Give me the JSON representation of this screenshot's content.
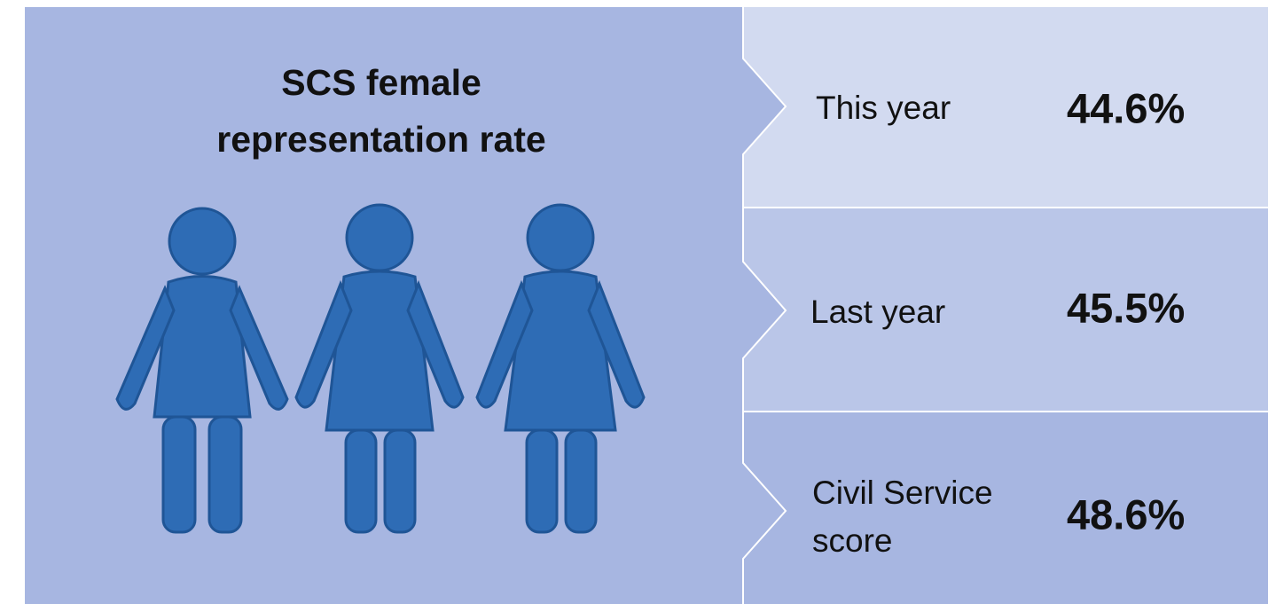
{
  "title": [
    "SCS female",
    "representation rate"
  ],
  "rows": [
    {
      "label": [
        "This year"
      ],
      "value": "44.6%"
    },
    {
      "label": [
        "Last year"
      ],
      "value": "45.5%"
    },
    {
      "label": [
        "Civil Service",
        "score"
      ],
      "value": "48.6%"
    }
  ]
}
